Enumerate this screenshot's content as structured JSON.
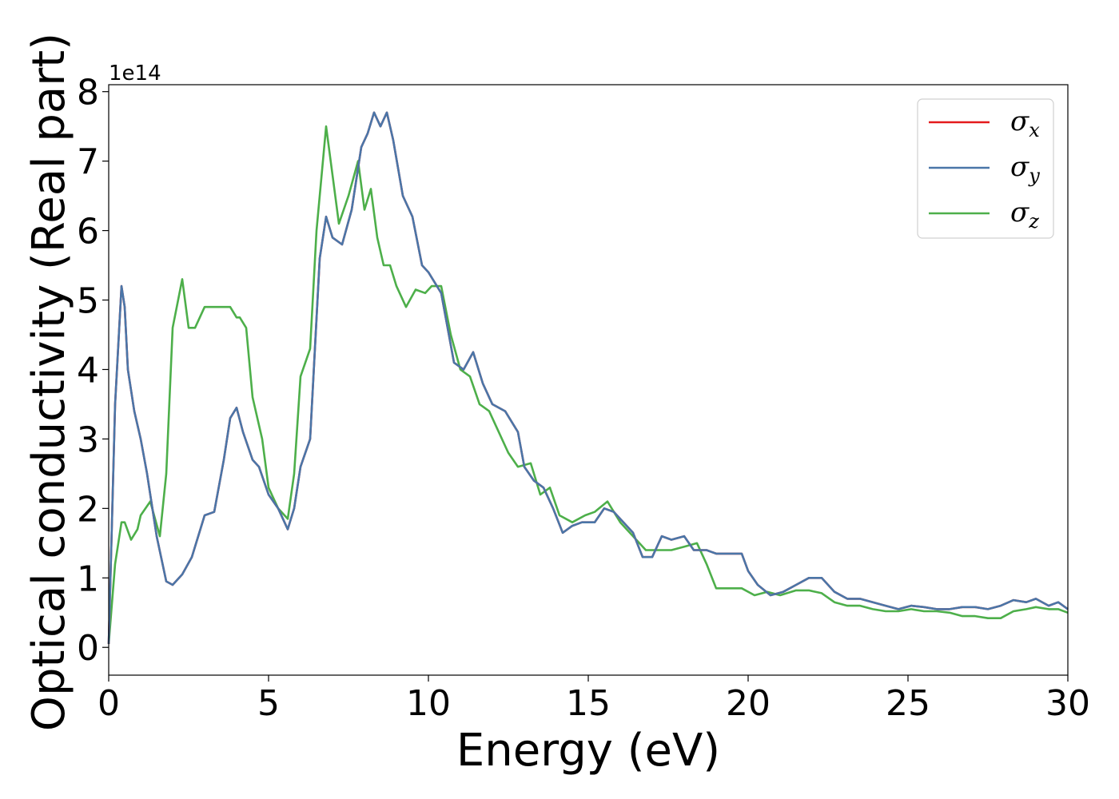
{
  "chart_data": {
    "type": "line",
    "xlabel": "Energy (eV)",
    "ylabel": "Optical conductivity (Real part)",
    "y_offset_text": "1e14",
    "xlim": [
      0,
      30
    ],
    "ylim": [
      -0.4,
      8.1
    ],
    "xticks": [
      0,
      5,
      10,
      15,
      20,
      25,
      30
    ],
    "yticks": [
      0,
      1,
      2,
      3,
      4,
      5,
      6,
      7,
      8
    ],
    "grid": false,
    "legend_position": "top-right",
    "series": [
      {
        "name": "σx",
        "legend_main": "σ",
        "legend_sub": "x",
        "color": "#e41a1c",
        "x": [
          0,
          0.2,
          0.4,
          0.5,
          0.6,
          0.8,
          1.0,
          1.2,
          1.5,
          1.8,
          2.0,
          2.3,
          2.6,
          3.0,
          3.3,
          3.6,
          3.8,
          4.0,
          4.2,
          4.5,
          4.7,
          5.0,
          5.3,
          5.6,
          5.8,
          6.0,
          6.3,
          6.6,
          6.8,
          7.0,
          7.3,
          7.6,
          7.9,
          8.1,
          8.3,
          8.5,
          8.7,
          8.9,
          9.2,
          9.5,
          9.8,
          10.0,
          10.4,
          10.8,
          11.1,
          11.4,
          11.7,
          12.0,
          12.4,
          12.8,
          13.0,
          13.3,
          13.6,
          13.9,
          14.2,
          14.5,
          14.8,
          15.2,
          15.5,
          15.8,
          16.1,
          16.4,
          16.7,
          17.0,
          17.3,
          17.6,
          18.0,
          18.3,
          18.7,
          19.0,
          19.4,
          19.8,
          20.0,
          20.3,
          20.7,
          21.1,
          21.5,
          21.9,
          22.3,
          22.7,
          23.1,
          23.5,
          23.9,
          24.3,
          24.7,
          25.1,
          25.5,
          25.9,
          26.3,
          26.7,
          27.1,
          27.5,
          27.9,
          28.3,
          28.7,
          29.0,
          29.4,
          29.7,
          30.0
        ],
        "y": [
          0.05,
          3.5,
          5.2,
          4.9,
          4.0,
          3.4,
          3.0,
          2.5,
          1.6,
          0.95,
          0.9,
          1.05,
          1.3,
          1.9,
          1.95,
          2.7,
          3.3,
          3.45,
          3.1,
          2.7,
          2.6,
          2.2,
          2.0,
          1.7,
          2.0,
          2.6,
          3.0,
          5.6,
          6.2,
          5.9,
          5.8,
          6.3,
          7.2,
          7.4,
          7.7,
          7.5,
          7.7,
          7.3,
          6.5,
          6.2,
          5.5,
          5.4,
          5.1,
          4.1,
          4.0,
          4.25,
          3.8,
          3.5,
          3.4,
          3.1,
          2.6,
          2.4,
          2.3,
          2.0,
          1.65,
          1.75,
          1.8,
          1.8,
          2.0,
          1.95,
          1.8,
          1.65,
          1.3,
          1.3,
          1.6,
          1.55,
          1.6,
          1.4,
          1.4,
          1.35,
          1.35,
          1.35,
          1.1,
          0.9,
          0.75,
          0.8,
          0.9,
          1.0,
          1.0,
          0.8,
          0.7,
          0.7,
          0.65,
          0.6,
          0.55,
          0.6,
          0.58,
          0.55,
          0.55,
          0.58,
          0.58,
          0.55,
          0.6,
          0.68,
          0.65,
          0.7,
          0.6,
          0.65,
          0.55
        ]
      },
      {
        "name": "σy",
        "legend_main": "σ",
        "legend_sub": "y",
        "color": "#4a76a8",
        "x": [
          0,
          0.2,
          0.4,
          0.5,
          0.6,
          0.8,
          1.0,
          1.2,
          1.5,
          1.8,
          2.0,
          2.3,
          2.6,
          3.0,
          3.3,
          3.6,
          3.8,
          4.0,
          4.2,
          4.5,
          4.7,
          5.0,
          5.3,
          5.6,
          5.8,
          6.0,
          6.3,
          6.6,
          6.8,
          7.0,
          7.3,
          7.6,
          7.9,
          8.1,
          8.3,
          8.5,
          8.7,
          8.9,
          9.2,
          9.5,
          9.8,
          10.0,
          10.4,
          10.8,
          11.1,
          11.4,
          11.7,
          12.0,
          12.4,
          12.8,
          13.0,
          13.3,
          13.6,
          13.9,
          14.2,
          14.5,
          14.8,
          15.2,
          15.5,
          15.8,
          16.1,
          16.4,
          16.7,
          17.0,
          17.3,
          17.6,
          18.0,
          18.3,
          18.7,
          19.0,
          19.4,
          19.8,
          20.0,
          20.3,
          20.7,
          21.1,
          21.5,
          21.9,
          22.3,
          22.7,
          23.1,
          23.5,
          23.9,
          24.3,
          24.7,
          25.1,
          25.5,
          25.9,
          26.3,
          26.7,
          27.1,
          27.5,
          27.9,
          28.3,
          28.7,
          29.0,
          29.4,
          29.7,
          30.0
        ],
        "y": [
          0.05,
          3.5,
          5.2,
          4.9,
          4.0,
          3.4,
          3.0,
          2.5,
          1.6,
          0.95,
          0.9,
          1.05,
          1.3,
          1.9,
          1.95,
          2.7,
          3.3,
          3.45,
          3.1,
          2.7,
          2.6,
          2.2,
          2.0,
          1.7,
          2.0,
          2.6,
          3.0,
          5.6,
          6.2,
          5.9,
          5.8,
          6.3,
          7.2,
          7.4,
          7.7,
          7.5,
          7.7,
          7.3,
          6.5,
          6.2,
          5.5,
          5.4,
          5.1,
          4.1,
          4.0,
          4.25,
          3.8,
          3.5,
          3.4,
          3.1,
          2.6,
          2.4,
          2.3,
          2.0,
          1.65,
          1.75,
          1.8,
          1.8,
          2.0,
          1.95,
          1.8,
          1.65,
          1.3,
          1.3,
          1.6,
          1.55,
          1.6,
          1.4,
          1.4,
          1.35,
          1.35,
          1.35,
          1.1,
          0.9,
          0.75,
          0.8,
          0.9,
          1.0,
          1.0,
          0.8,
          0.7,
          0.7,
          0.65,
          0.6,
          0.55,
          0.6,
          0.58,
          0.55,
          0.55,
          0.58,
          0.58,
          0.55,
          0.6,
          0.68,
          0.65,
          0.7,
          0.6,
          0.65,
          0.55
        ]
      },
      {
        "name": "σz",
        "legend_main": "σ",
        "legend_sub": "z",
        "color": "#4daf4a",
        "x": [
          0,
          0.2,
          0.4,
          0.5,
          0.7,
          0.9,
          1.0,
          1.3,
          1.6,
          1.8,
          2.0,
          2.3,
          2.5,
          2.7,
          3.0,
          3.3,
          3.5,
          3.8,
          4.0,
          4.1,
          4.3,
          4.5,
          4.8,
          5.0,
          5.3,
          5.6,
          5.8,
          6.0,
          6.3,
          6.5,
          6.8,
          7.0,
          7.2,
          7.5,
          7.8,
          8.0,
          8.2,
          8.4,
          8.6,
          8.8,
          9.0,
          9.3,
          9.6,
          9.9,
          10.1,
          10.4,
          10.7,
          11.0,
          11.3,
          11.6,
          11.9,
          12.2,
          12.5,
          12.8,
          13.2,
          13.5,
          13.8,
          14.1,
          14.5,
          14.9,
          15.2,
          15.6,
          16.0,
          16.4,
          16.8,
          17.2,
          17.6,
          18.0,
          18.4,
          18.7,
          19.0,
          19.4,
          19.8,
          20.2,
          20.6,
          21.0,
          21.5,
          21.9,
          22.3,
          22.7,
          23.1,
          23.5,
          23.9,
          24.3,
          24.7,
          25.1,
          25.5,
          25.9,
          26.3,
          26.7,
          27.1,
          27.5,
          27.9,
          28.3,
          28.7,
          29.0,
          29.4,
          29.7,
          30.0
        ],
        "y": [
          0.05,
          1.2,
          1.8,
          1.8,
          1.55,
          1.7,
          1.9,
          2.1,
          1.6,
          2.5,
          4.6,
          5.3,
          4.6,
          4.6,
          4.9,
          4.9,
          4.9,
          4.9,
          4.75,
          4.75,
          4.6,
          3.6,
          3.0,
          2.3,
          2.0,
          1.85,
          2.5,
          3.9,
          4.3,
          6.0,
          7.5,
          6.8,
          6.1,
          6.5,
          7.0,
          6.3,
          6.6,
          5.9,
          5.5,
          5.5,
          5.2,
          4.9,
          5.15,
          5.1,
          5.2,
          5.2,
          4.5,
          4.0,
          3.9,
          3.5,
          3.4,
          3.1,
          2.8,
          2.6,
          2.65,
          2.2,
          2.3,
          1.9,
          1.8,
          1.9,
          1.95,
          2.1,
          1.8,
          1.6,
          1.4,
          1.4,
          1.4,
          1.45,
          1.5,
          1.2,
          0.85,
          0.85,
          0.85,
          0.75,
          0.8,
          0.75,
          0.82,
          0.82,
          0.78,
          0.65,
          0.6,
          0.6,
          0.55,
          0.52,
          0.52,
          0.55,
          0.52,
          0.52,
          0.5,
          0.45,
          0.45,
          0.42,
          0.42,
          0.52,
          0.55,
          0.58,
          0.55,
          0.55,
          0.5
        ]
      }
    ]
  }
}
